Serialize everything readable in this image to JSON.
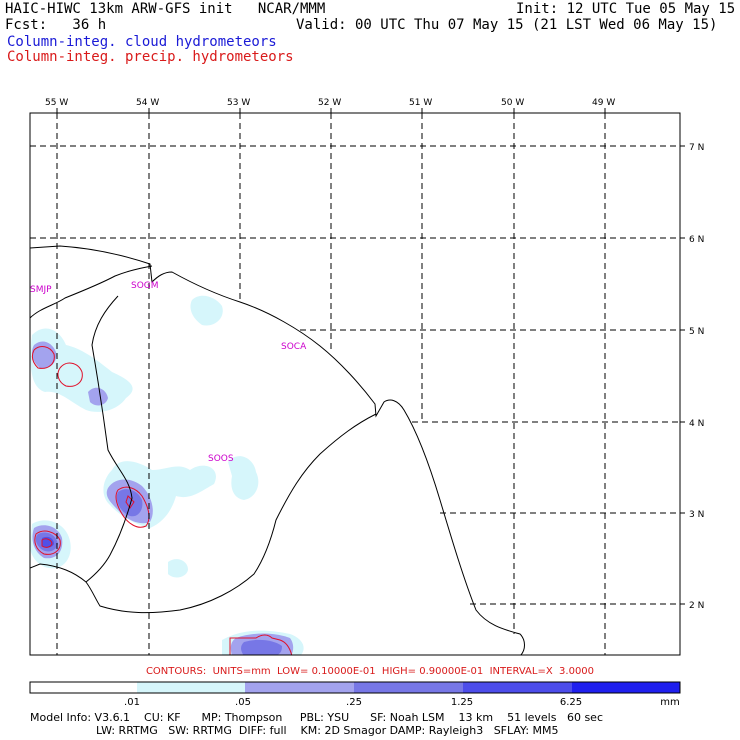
{
  "header": {
    "left_title": "HAIC-HIWC 13km ARW-GFS init   NCAR/MMM",
    "fcst": "Fcst:   36 h",
    "init": "Init: 12 UTC Tue 05 May 15",
    "valid": "Valid: 00 UTC Thu 07 May 15 (21 LST Wed 06 May 15)",
    "field_cloud": "Column-integ. cloud hydrometeors",
    "field_precip": "Column-integ. precip. hydrometeors"
  },
  "map": {
    "lon_labels": [
      "55 W",
      "54 W",
      "53 W",
      "52 W",
      "51 W",
      "50 W",
      "49 W"
    ],
    "lat_labels": [
      "7 N",
      "6 N",
      "5 N",
      "4 N",
      "3 N",
      "2 N"
    ],
    "stations": [
      "SMJP",
      "SOGM",
      "SOCA",
      "SOOS"
    ],
    "colors": {
      "grid": "#000000",
      "coast": "#000000",
      "station": "#cc00cc",
      "cloud_fill_1": "#d6f6fb",
      "cloud_fill_2": "#a3a3ee",
      "cloud_fill_3": "#7777e6",
      "cloud_fill_4": "#5050e8",
      "precip_contour": "#e0102a"
    }
  },
  "contours": {
    "label": "CONTOURS:  UNITS=mm  LOW= 0.10000E-01  HIGH= 0.90000E-01  INTERVAL=X  3.0000"
  },
  "colorbar": {
    "tick_labels": [
      ".01",
      ".05",
      ".25",
      "1.25",
      "6.25"
    ],
    "unit": "mm",
    "colors": [
      "#ffffff",
      "#d6f6fb",
      "#a3a3ee",
      "#7777e6",
      "#4d4dea",
      "#1f1fee"
    ]
  },
  "model_info": {
    "line1": "Model Info: V3.6.1    CU: KF      MP: Thompson     PBL: YSU      SF: Noah LSM    13 km    51 levels   60 sec",
    "line2": "LW: RRTMG   SW: RRTMG  DIFF: full    KM: 2D Smagor DAMP: Rayleigh3   SFLAY: MM5"
  }
}
